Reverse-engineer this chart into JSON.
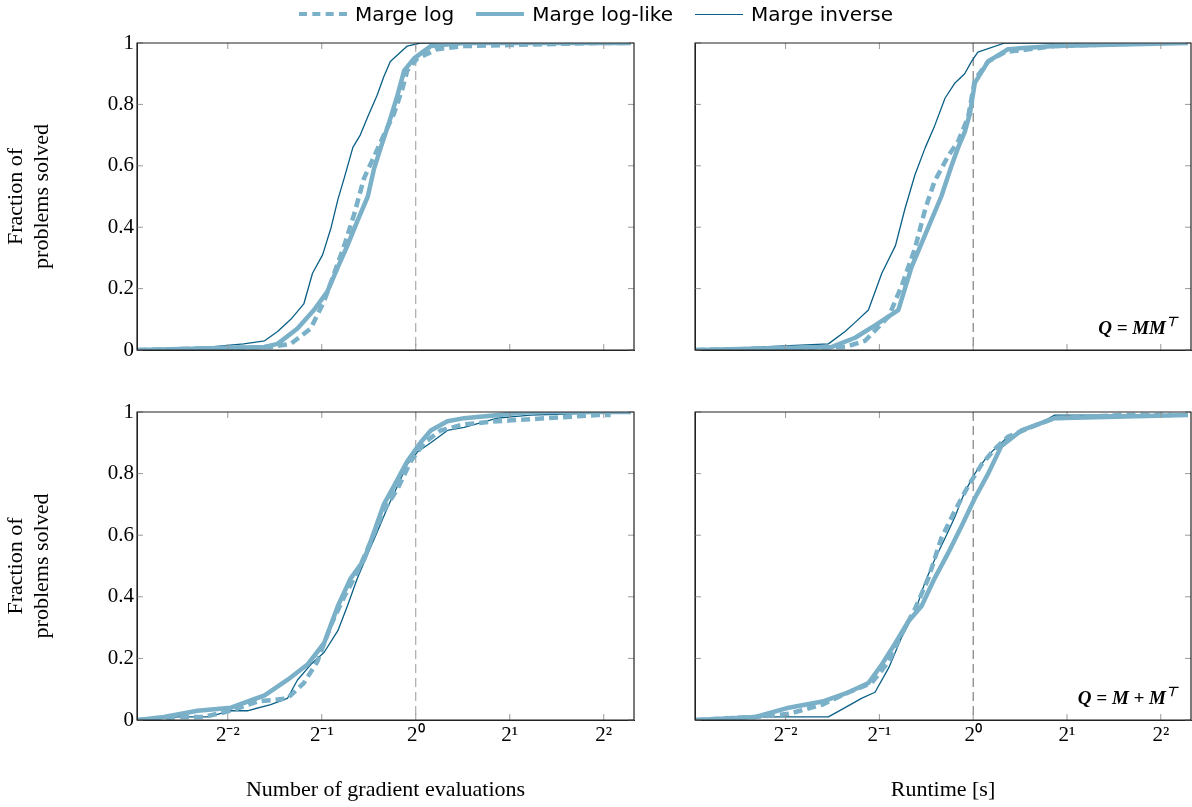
{
  "chart_data": [
    {
      "type": "line",
      "ylabel": "Fraction of problems solved",
      "legend": "top",
      "log": "x",
      "xlim": [
        0.128,
        5
      ],
      "ylim": [
        0,
        1
      ],
      "tick_labels": "y",
      "xticks": [
        0.25,
        0.5,
        1,
        2,
        4
      ],
      "yticks": [
        0,
        0.2,
        0.4,
        0.6,
        0.8,
        1
      ],
      "ref_lines": [
        {
          "axis": "x",
          "value": 1,
          "color": "#999999",
          "line_style": "dashed"
        }
      ],
      "series": [
        {
          "name": "Marge log",
          "color": "#7ab0c8",
          "line_style": "dashed",
          "x": [
            0.129,
            0.343,
            0.398,
            0.461,
            0.509,
            0.548,
            0.59,
            0.634,
            0.683,
            0.735,
            0.79,
            0.852,
            0.906,
            0.939,
            1.012,
            1.173,
            1.428,
            3.82,
            4.89
          ],
          "values": [
            0.0,
            0.01,
            0.02,
            0.07,
            0.16,
            0.25,
            0.34,
            0.44,
            0.56,
            0.63,
            0.7,
            0.77,
            0.85,
            0.91,
            0.95,
            0.98,
            0.99,
            1.0,
            1.0
          ]
        },
        {
          "name": "Marge log-like",
          "color": "#7ab0c8",
          "line_style": "solid",
          "x": [
            0.129,
            0.328,
            0.361,
            0.418,
            0.472,
            0.521,
            0.563,
            0.604,
            0.65,
            0.702,
            0.735,
            0.773,
            0.821,
            0.874,
            0.918,
            0.988,
            1.117,
            1.428,
            4.89
          ],
          "values": [
            0.0,
            0.01,
            0.02,
            0.07,
            0.13,
            0.19,
            0.27,
            0.34,
            0.42,
            0.5,
            0.59,
            0.66,
            0.74,
            0.83,
            0.91,
            0.95,
            0.99,
            1.0,
            1.0
          ]
        },
        {
          "name": "Marge inverse",
          "color": "#0a5f86",
          "line_style": "solid",
          "x": [
            0.129,
            0.221,
            0.281,
            0.328,
            0.361,
            0.398,
            0.438,
            0.467,
            0.503,
            0.536,
            0.563,
            0.59,
            0.629,
            0.664,
            0.702,
            0.752,
            0.79,
            0.829,
            0.939,
            1.035,
            1.117,
            4.89
          ],
          "values": [
            0.0,
            0.01,
            0.02,
            0.03,
            0.06,
            0.1,
            0.15,
            0.25,
            0.31,
            0.4,
            0.49,
            0.56,
            0.66,
            0.7,
            0.76,
            0.83,
            0.89,
            0.94,
            0.99,
            1.0,
            1.0,
            1.0
          ]
        }
      ]
    },
    {
      "type": "line",
      "log": "x",
      "xlim": [
        0.128,
        5
      ],
      "ylim": [
        0,
        1
      ],
      "tick_labels": false,
      "xticks": [
        0.25,
        0.5,
        1,
        2,
        4
      ],
      "yticks": [
        0,
        0.2,
        0.4,
        0.6,
        0.8,
        1
      ],
      "ref_lines": [
        {
          "axis": "x",
          "value": 1,
          "color": "#666666",
          "line_style": "dashed"
        }
      ],
      "annotations": [
        "Q = MM$^{⊤}$"
      ],
      "series": [
        {
          "color": "#7ab0c8",
          "line_style": "dashed",
          "x": [
            0.129,
            0.388,
            0.45,
            0.536,
            0.59,
            0.65,
            0.702,
            0.752,
            0.829,
            0.895,
            0.964,
            1.012,
            1.117,
            1.263,
            1.826,
            3.82
          ],
          "values": [
            0.0,
            0.01,
            0.03,
            0.11,
            0.21,
            0.33,
            0.46,
            0.55,
            0.63,
            0.68,
            0.76,
            0.88,
            0.94,
            0.97,
            0.99,
            1.0
          ]
        },
        {
          "color": "#7ab0c8",
          "line_style": "solid",
          "x": [
            0.129,
            0.352,
            0.418,
            0.484,
            0.575,
            0.634,
            0.718,
            0.79,
            0.852,
            0.895,
            0.939,
            0.976,
            1.012,
            1.117,
            1.294,
            1.826,
            4.89
          ],
          "values": [
            0.0,
            0.01,
            0.04,
            0.08,
            0.13,
            0.27,
            0.4,
            0.5,
            0.6,
            0.66,
            0.71,
            0.77,
            0.87,
            0.94,
            0.98,
            0.99,
            1.0
          ]
        },
        {
          "color": "#0a5f86",
          "line_style": "solid",
          "x": [
            0.129,
            0.343,
            0.388,
            0.418,
            0.461,
            0.509,
            0.563,
            0.604,
            0.65,
            0.702,
            0.752,
            0.812,
            0.874,
            0.939,
            0.988,
            1.035,
            1.263,
            4.89
          ],
          "values": [
            0.0,
            0.02,
            0.06,
            0.09,
            0.13,
            0.25,
            0.34,
            0.46,
            0.57,
            0.66,
            0.73,
            0.82,
            0.87,
            0.9,
            0.94,
            0.97,
            1.0,
            1.0
          ]
        }
      ]
    },
    {
      "type": "line",
      "ylabel": "Fraction of problems solved",
      "xlabel": "Number of gradient evaluations",
      "log": "x",
      "xlim": [
        0.128,
        5
      ],
      "ylim": [
        0,
        1
      ],
      "xticks": [
        {
          "value": 0.25,
          "label": "2⁻²"
        },
        {
          "value": 0.5,
          "label": "2⁻¹"
        },
        {
          "value": 1,
          "label": "2⁰"
        },
        {
          "value": 2,
          "label": "2¹"
        },
        {
          "value": 4,
          "label": "2²"
        }
      ],
      "yticks": [
        0,
        0.2,
        0.4,
        0.6,
        0.8,
        1
      ],
      "ref_lines": [
        {
          "axis": "x",
          "value": 1,
          "color": "#999999",
          "line_style": "dashed"
        }
      ],
      "series": [
        {
          "color": "#7ab0c8",
          "line_style": "dashed",
          "x": [
            0.129,
            0.177,
            0.21,
            0.256,
            0.311,
            0.388,
            0.438,
            0.484,
            0.536,
            0.59,
            0.65,
            0.718,
            0.79,
            0.874,
            0.964,
            1.064,
            1.202,
            1.428,
            1.826,
            2.64,
            3.82,
            4.21
          ],
          "values": [
            0.0,
            0.01,
            0.01,
            0.03,
            0.06,
            0.07,
            0.12,
            0.19,
            0.31,
            0.4,
            0.48,
            0.58,
            0.68,
            0.75,
            0.84,
            0.9,
            0.94,
            0.96,
            0.97,
            0.98,
            0.99,
            0.99
          ]
        },
        {
          "color": "#7ab0c8",
          "line_style": "solid",
          "x": [
            0.129,
            0.156,
            0.2,
            0.256,
            0.328,
            0.388,
            0.45,
            0.509,
            0.563,
            0.619,
            0.683,
            0.735,
            0.79,
            0.852,
            0.939,
            1.035,
            1.117,
            1.263,
            1.428,
            2.335,
            4.89
          ],
          "values": [
            0.0,
            0.01,
            0.03,
            0.04,
            0.08,
            0.13,
            0.18,
            0.25,
            0.37,
            0.46,
            0.52,
            0.61,
            0.7,
            0.76,
            0.84,
            0.9,
            0.94,
            0.97,
            0.98,
            1.0,
            1.0
          ]
        },
        {
          "color": "#0a5f86",
          "line_style": "solid",
          "x": [
            0.129,
            0.173,
            0.215,
            0.256,
            0.289,
            0.343,
            0.388,
            0.418,
            0.461,
            0.509,
            0.563,
            0.604,
            0.65,
            0.702,
            0.752,
            0.812,
            0.874,
            0.939,
            1.012,
            1.117,
            1.263,
            1.428,
            1.826,
            2.335,
            4.89
          ],
          "values": [
            0.0,
            0.01,
            0.01,
            0.03,
            0.03,
            0.05,
            0.07,
            0.13,
            0.18,
            0.22,
            0.29,
            0.37,
            0.46,
            0.54,
            0.61,
            0.69,
            0.76,
            0.83,
            0.87,
            0.9,
            0.94,
            0.95,
            0.98,
            0.99,
            1.0
          ]
        }
      ]
    },
    {
      "type": "line",
      "xlabel": "Runtime [s]",
      "log": "x",
      "xlim": [
        0.128,
        5
      ],
      "ylim": [
        0,
        1
      ],
      "tick_labels": "x",
      "xticks": [
        {
          "value": 0.25,
          "label": "2⁻²"
        },
        {
          "value": 0.5,
          "label": "2⁻¹"
        },
        {
          "value": 1,
          "label": "2⁰"
        },
        {
          "value": 2,
          "label": "2¹"
        },
        {
          "value": 4,
          "label": "2²"
        }
      ],
      "yticks": [
        0,
        0.2,
        0.4,
        0.6,
        0.8,
        1
      ],
      "ref_lines": [
        {
          "axis": "x",
          "value": 1,
          "color": "#666666",
          "line_style": "dashed"
        }
      ],
      "annotations": [
        "Q = M + M$^{⊤}$"
      ],
      "series": [
        {
          "color": "#7ab0c8",
          "line_style": "dashed",
          "x": [
            0.129,
            0.2,
            0.256,
            0.328,
            0.398,
            0.472,
            0.536,
            0.59,
            0.65,
            0.718,
            0.79,
            0.874,
            0.964,
            1.064,
            1.173,
            1.294,
            1.615,
            1.826,
            2.99,
            4.32
          ],
          "values": [
            0.0,
            0.01,
            0.02,
            0.05,
            0.09,
            0.12,
            0.19,
            0.28,
            0.36,
            0.46,
            0.59,
            0.68,
            0.76,
            0.83,
            0.88,
            0.92,
            0.96,
            0.98,
            0.99,
            0.99
          ]
        },
        {
          "color": "#7ab0c8",
          "line_style": "solid",
          "x": [
            0.129,
            0.2,
            0.256,
            0.328,
            0.398,
            0.461,
            0.509,
            0.563,
            0.619,
            0.683,
            0.752,
            0.829,
            0.918,
            1.012,
            1.117,
            1.232,
            1.428,
            1.826,
            4.89
          ],
          "values": [
            0.0,
            0.01,
            0.04,
            0.06,
            0.09,
            0.12,
            0.18,
            0.25,
            0.32,
            0.37,
            0.46,
            0.54,
            0.63,
            0.72,
            0.8,
            0.89,
            0.94,
            0.98,
            0.99
          ]
        },
        {
          "color": "#0a5f86",
          "line_style": "solid",
          "x": [
            0.129,
            0.2,
            0.256,
            0.343,
            0.388,
            0.438,
            0.484,
            0.536,
            0.59,
            0.65,
            0.702,
            0.752,
            0.812,
            0.874,
            0.939,
            1.012,
            1.117,
            1.263,
            1.428,
            1.615,
            1.826,
            4.89
          ],
          "values": [
            0.0,
            0.01,
            0.01,
            0.01,
            0.04,
            0.07,
            0.09,
            0.17,
            0.27,
            0.35,
            0.45,
            0.52,
            0.59,
            0.66,
            0.74,
            0.8,
            0.86,
            0.91,
            0.94,
            0.96,
            0.99,
            0.99
          ]
        }
      ]
    }
  ]
}
